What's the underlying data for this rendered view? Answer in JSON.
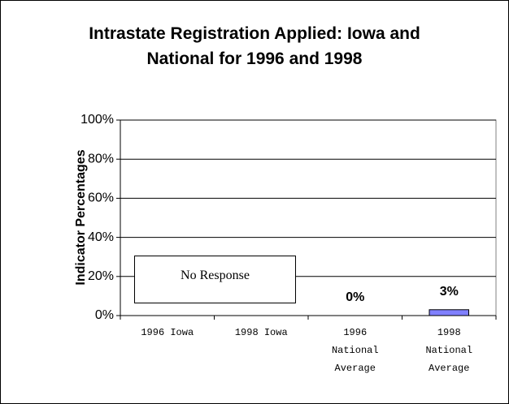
{
  "chart_data": {
    "type": "bar",
    "title": "Intrastate Registration Applied: Iowa and National for 1996 and 1998",
    "y_label": "Indicator Percentages",
    "categories": [
      "1996 Iowa",
      "1998 Iowa",
      "1996 National Average",
      "1998 National Average"
    ],
    "values": [
      null,
      null,
      0,
      3
    ],
    "value_labels": [
      null,
      null,
      "0%",
      "3%"
    ],
    "color": "#8080ff",
    "annotation": "No Response",
    "ylim": [
      0,
      100
    ],
    "yticks": [
      {
        "value": 0,
        "label": "0%"
      },
      {
        "value": 20,
        "label": "20%"
      },
      {
        "value": 40,
        "label": "40%"
      },
      {
        "value": 60,
        "label": "60%"
      },
      {
        "value": 80,
        "label": "80%"
      },
      {
        "value": 100,
        "label": "100%"
      }
    ],
    "grid": true
  }
}
